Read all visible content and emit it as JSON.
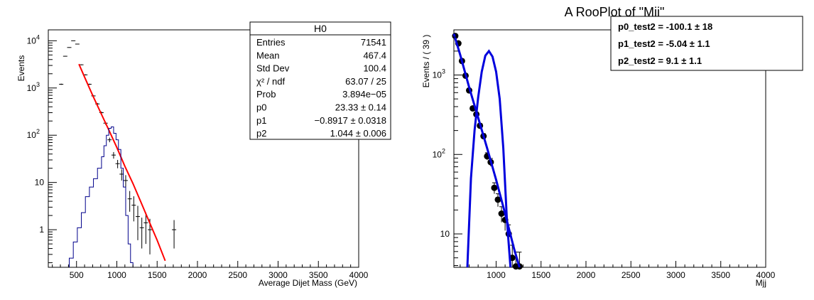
{
  "chart_data": [
    {
      "type": "scatter",
      "title": "",
      "xlabel": "Average Dijet Mass (GeV)",
      "ylabel": "Events",
      "xlim": [
        150,
        4000
      ],
      "ylim": [
        0.16,
        17000
      ],
      "yscale": "log",
      "x_ticks": [
        500,
        1000,
        1500,
        2000,
        2500,
        3000,
        3500,
        4000
      ],
      "y_ticks": [
        {
          "value": 1,
          "label": "1",
          "sup": ""
        },
        {
          "value": 10,
          "label": "10",
          "sup": ""
        },
        {
          "value": 100,
          "label": "10",
          "sup": "2"
        },
        {
          "value": 1000,
          "label": "10",
          "sup": "3"
        },
        {
          "value": 10000,
          "label": "10",
          "sup": "4"
        }
      ],
      "grid": false,
      "legend": "stats box top-right",
      "series": [
        {
          "kind": "data_points",
          "color": "#000000",
          "x": [
            310,
            360,
            410,
            460,
            510,
            560,
            610,
            660,
            710,
            760,
            810,
            860,
            910,
            960,
            1010,
            1060,
            1110,
            1160,
            1210,
            1260,
            1310,
            1360,
            1410,
            1710
          ],
          "y": [
            1200,
            4700,
            7200,
            10000,
            8500,
            3100,
            1900,
            1200,
            680,
            460,
            300,
            180,
            80,
            38,
            25,
            15,
            11,
            4.5,
            3.3,
            1.9,
            1.1,
            1.4,
            1.0,
            1.0
          ],
          "yerr": [
            35,
            70,
            85,
            100,
            92,
            56,
            44,
            35,
            26,
            21,
            17,
            13,
            9,
            6,
            5,
            4,
            3.3,
            2.1,
            1.8,
            1.3,
            0.7,
            0.9,
            0.7,
            0.6
          ]
        },
        {
          "kind": "fit_curve",
          "color": "#ff0000",
          "x": [
            530,
            600,
            700,
            800,
            900,
            1000,
            1100,
            1200,
            1300,
            1400,
            1500,
            1600
          ],
          "y": [
            3200,
            1700,
            700,
            300,
            130,
            55,
            22,
            9.5,
            3.8,
            1.5,
            0.6,
            0.22
          ]
        },
        {
          "kind": "histogram",
          "color": "#00008b",
          "bin_edges": [
            410,
            460,
            510,
            560,
            610,
            660,
            710,
            760,
            810,
            840,
            870,
            900,
            930,
            960,
            990,
            1020,
            1050,
            1080,
            1110,
            1140,
            1170,
            1200
          ],
          "values": [
            0.25,
            0.55,
            1.1,
            2.3,
            5,
            8,
            12,
            20,
            35,
            60,
            100,
            140,
            150,
            110,
            80,
            50,
            20,
            8,
            2,
            0.5,
            0.2
          ]
        }
      ],
      "stats_box": {
        "title": "H0",
        "rows": [
          {
            "label": "Entries",
            "value": "71541"
          },
          {
            "label": "Mean",
            "value": "467.4"
          },
          {
            "label": "Std Dev",
            "value": "100.4"
          },
          {
            "label": "χ² / ndf",
            "value": "63.07 / 25"
          },
          {
            "label": "Prob",
            "value": "3.894e−05"
          },
          {
            "label": "p0",
            "value": "23.33 ± 0.14"
          },
          {
            "label": "p1",
            "value": "−0.8917 ± 0.0318"
          },
          {
            "label": "p2",
            "value": "1.044 ± 0.006"
          }
        ]
      }
    },
    {
      "type": "scatter",
      "title": "A RooPlot of \"Mjj\"",
      "xlabel": "Mjj",
      "ylabel": "Events / ( 39 )",
      "xlim": [
        530,
        4000
      ],
      "ylim": [
        3.8,
        3700
      ],
      "yscale": "log",
      "x_ticks": [
        1000,
        1500,
        2000,
        2500,
        3000,
        3500,
        4000
      ],
      "y_ticks": [
        {
          "value": 10,
          "label": "10",
          "sup": ""
        },
        {
          "value": 100,
          "label": "10",
          "sup": "2"
        },
        {
          "value": 1000,
          "label": "10",
          "sup": "3"
        }
      ],
      "grid": false,
      "legend": "parameter box top-right",
      "series": [
        {
          "kind": "data_points",
          "color": "#000000",
          "x": [
            545,
            580,
            620,
            660,
            700,
            740,
            780,
            820,
            860,
            900,
            940,
            980,
            1020,
            1060,
            1100,
            1140,
            1180,
            1220,
            1260
          ],
          "y": [
            3100,
            2500,
            1500,
            980,
            640,
            380,
            320,
            230,
            170,
            95,
            80,
            38,
            27,
            18,
            15,
            10,
            5,
            3.9,
            3.9
          ],
          "yerr": [
            56,
            50,
            39,
            31,
            25,
            19,
            18,
            15,
            13,
            10,
            9,
            6,
            5,
            4,
            4,
            3,
            2.2,
            2.0,
            2.0
          ]
        },
        {
          "kind": "fit_curve",
          "color": "#0000dd",
          "x": [
            530,
            600,
            700,
            800,
            900,
            1000,
            1100,
            1200,
            1260
          ],
          "y": [
            3300,
            1800,
            700,
            290,
            120,
            48,
            18,
            6.5,
            3.8
          ]
        },
        {
          "kind": "signal_curve",
          "color": "#0000dd",
          "x": [
            680,
            720,
            760,
            800,
            840,
            880,
            920,
            960,
            1000,
            1040,
            1080,
            1120,
            1160
          ],
          "y": [
            3.8,
            50,
            200,
            520,
            1100,
            1750,
            2000,
            1700,
            1100,
            500,
            120,
            15,
            3.8
          ]
        }
      ],
      "param_box": {
        "rows": [
          {
            "label": "p0_test2 = -100.1",
            "err": "18"
          },
          {
            "label": "p1_test2 = -5.04",
            "err": "1.1"
          },
          {
            "label": "p2_test2 =  9.1",
            "err": "1.1"
          }
        ]
      }
    }
  ]
}
